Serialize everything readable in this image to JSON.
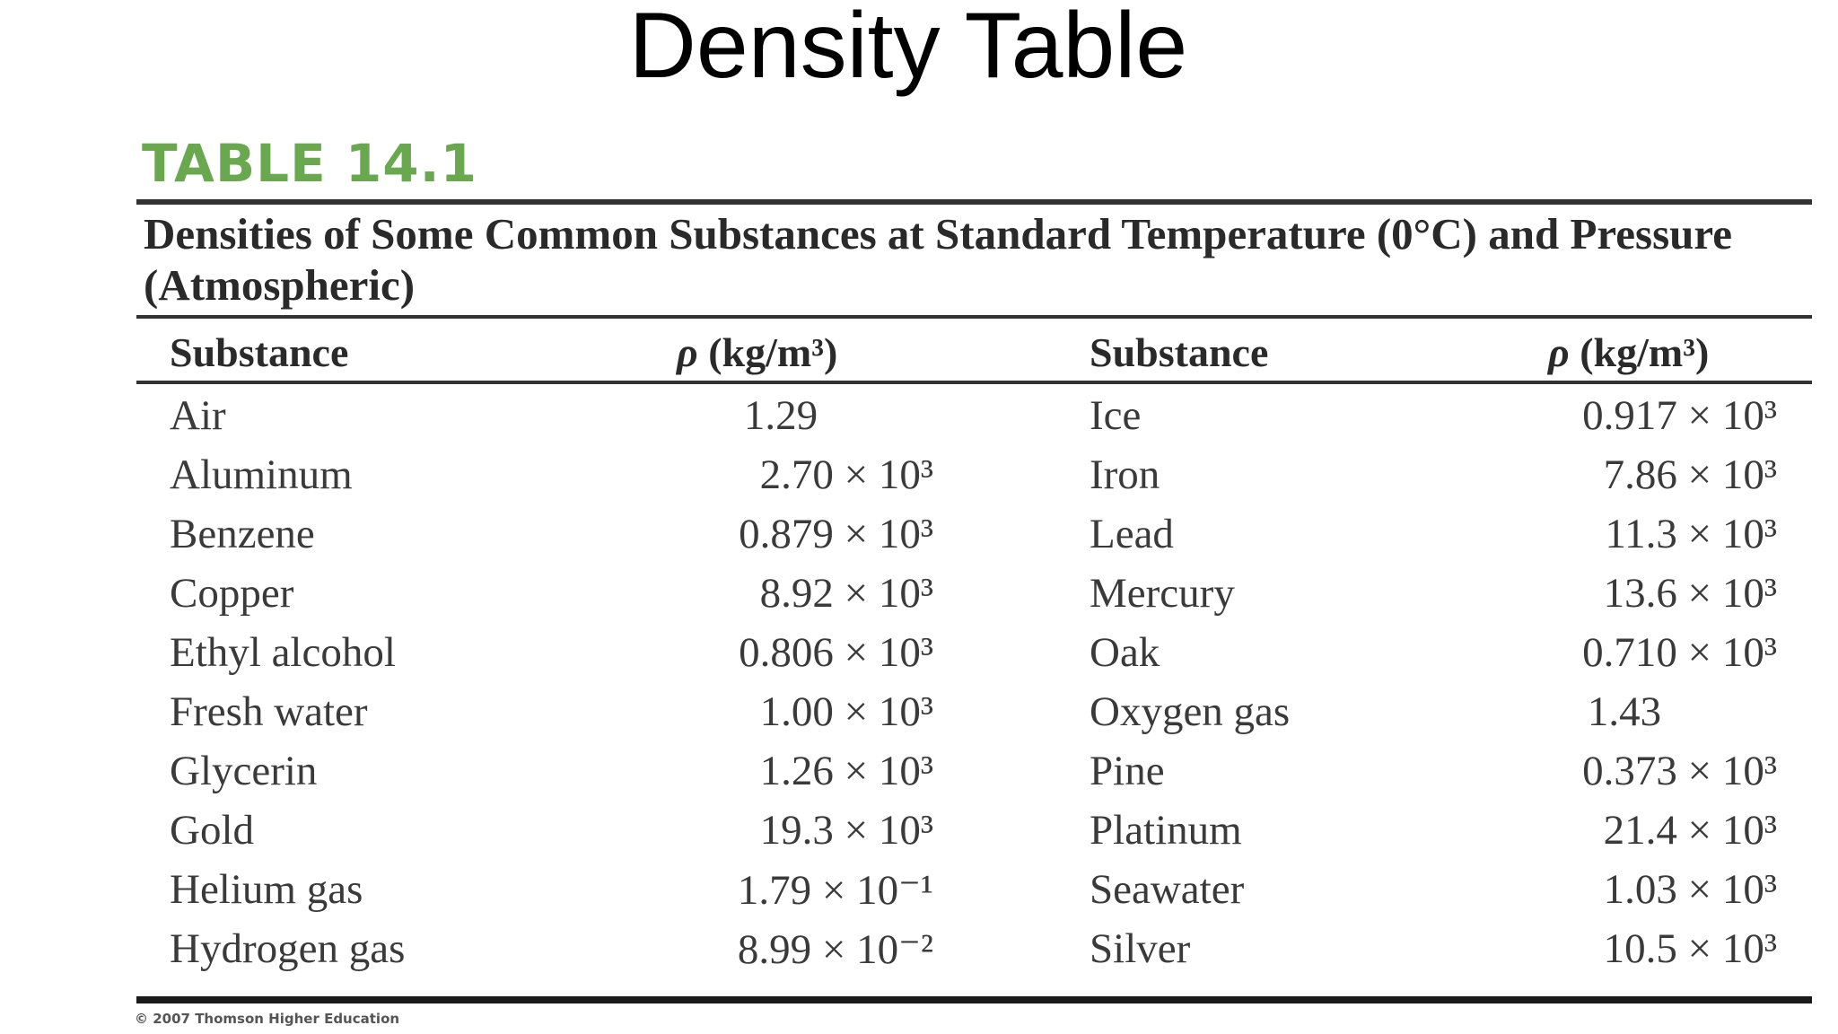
{
  "title": "Density Table",
  "table_label": "TABLE 14.1",
  "caption": "Densities of Some Common Substances at Standard Temperature (0°C) and Pressure (Atmospheric)",
  "headers": {
    "substance": "Substance",
    "density_symbol": "ρ",
    "density_unit": "(kg/m³)"
  },
  "rows": [
    {
      "s1": "Air",
      "v1": "1.29",
      "s2": "Ice",
      "v2": "0.917 × 10³"
    },
    {
      "s1": "Aluminum",
      "v1": "2.70 × 10³",
      "s2": "Iron",
      "v2": "7.86 × 10³"
    },
    {
      "s1": "Benzene",
      "v1": "0.879 × 10³",
      "s2": "Lead",
      "v2": "11.3 × 10³"
    },
    {
      "s1": "Copper",
      "v1": "8.92 × 10³",
      "s2": "Mercury",
      "v2": "13.6 × 10³"
    },
    {
      "s1": "Ethyl alcohol",
      "v1": "0.806 × 10³",
      "s2": "Oak",
      "v2": "0.710 × 10³"
    },
    {
      "s1": "Fresh water",
      "v1": "1.00 × 10³",
      "s2": "Oxygen gas",
      "v2": "1.43"
    },
    {
      "s1": "Glycerin",
      "v1": "1.26 × 10³",
      "s2": "Pine",
      "v2": "0.373 × 10³"
    },
    {
      "s1": "Gold",
      "v1": "19.3 × 10³",
      "s2": "Platinum",
      "v2": "21.4 × 10³"
    },
    {
      "s1": "Helium gas",
      "v1": "1.79 × 10⁻¹",
      "s2": "Seawater",
      "v2": "1.03 × 10³"
    },
    {
      "s1": "Hydrogen gas",
      "v1": "8.99 × 10⁻²",
      "s2": "Silver",
      "v2": "10.5 × 10³"
    }
  ],
  "copyright": "© 2007 Thomson Higher Education",
  "colors": {
    "table_label": "#6aa84f",
    "rules": "#333333",
    "text": "#2a2a2a"
  }
}
